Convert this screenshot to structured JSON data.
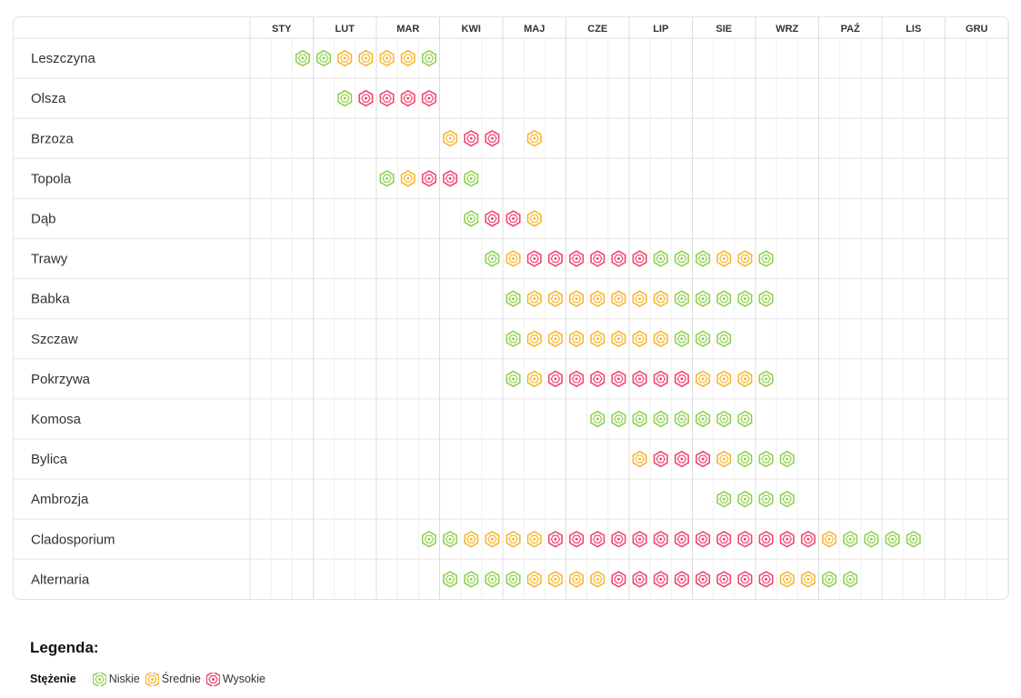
{
  "chart_data": {
    "type": "table",
    "months": [
      "STY",
      "LUT",
      "MAR",
      "KWI",
      "MAJ",
      "CZE",
      "LIP",
      "SIE",
      "WRZ",
      "PAŹ",
      "LIS",
      "GRU"
    ],
    "levels": {
      "L": {
        "name": "Niskie",
        "color": "#8fd14f"
      },
      "M": {
        "name": "Średnie",
        "color": "#f5b731"
      },
      "H": {
        "name": "Wysokie",
        "color": "#ef476f"
      }
    },
    "rows": [
      {
        "name": "Leszczyna",
        "start": 2,
        "levels": [
          "L",
          "L",
          "M",
          "M",
          "M",
          "M",
          "L"
        ]
      },
      {
        "name": "Olsza",
        "start": 4,
        "levels": [
          "L",
          "H",
          "H",
          "H",
          "H"
        ]
      },
      {
        "name": "Brzoza",
        "start": 9,
        "levels": [
          "M",
          "H",
          "H",
          null,
          "M"
        ]
      },
      {
        "name": "Topola",
        "start": 6,
        "levels": [
          "L",
          "M",
          "H",
          "H",
          "L"
        ]
      },
      {
        "name": "Dąb",
        "start": 10,
        "levels": [
          "L",
          "H",
          "H",
          "M"
        ]
      },
      {
        "name": "Trawy",
        "start": 11,
        "levels": [
          "L",
          "M",
          "H",
          "H",
          "H",
          "H",
          "H",
          "H",
          "L",
          "L",
          "L",
          "M",
          "M",
          "L"
        ]
      },
      {
        "name": "Babka",
        "start": 12,
        "levels": [
          "L",
          "M",
          "M",
          "M",
          "M",
          "M",
          "M",
          "M",
          "L",
          "L",
          "L",
          "L",
          "L"
        ]
      },
      {
        "name": "Szczaw",
        "start": 12,
        "levels": [
          "L",
          "M",
          "M",
          "M",
          "M",
          "M",
          "M",
          "M",
          "L",
          "L",
          "L"
        ]
      },
      {
        "name": "Pokrzywa",
        "start": 12,
        "levels": [
          "L",
          "M",
          "H",
          "H",
          "H",
          "H",
          "H",
          "H",
          "H",
          "M",
          "M",
          "M",
          "L"
        ]
      },
      {
        "name": "Komosa",
        "start": 16,
        "levels": [
          "L",
          "L",
          "L",
          "L",
          "L",
          "L",
          "L",
          "L"
        ]
      },
      {
        "name": "Bylica",
        "start": 18,
        "levels": [
          "M",
          "H",
          "H",
          "H",
          "M",
          "L",
          "L",
          "L"
        ]
      },
      {
        "name": "Ambrozja",
        "start": 22,
        "levels": [
          "L",
          "L",
          "L",
          "L"
        ]
      },
      {
        "name": "Cladosporium",
        "start": 8,
        "levels": [
          "L",
          "L",
          "M",
          "M",
          "M",
          "M",
          "H",
          "H",
          "H",
          "H",
          "H",
          "H",
          "H",
          "H",
          "H",
          "H",
          "H",
          "H",
          "H",
          "M",
          "L",
          "L",
          "L",
          "L"
        ]
      },
      {
        "name": "Alternaria",
        "start": 9,
        "levels": [
          "L",
          "L",
          "L",
          "L",
          "M",
          "M",
          "M",
          "M",
          "H",
          "H",
          "H",
          "H",
          "H",
          "H",
          "H",
          "H",
          "M",
          "M",
          "L",
          "L"
        ]
      }
    ]
  },
  "legend": {
    "title": "Legenda:",
    "label": "Stężenie",
    "items": [
      {
        "key": "L",
        "label": "Niskie"
      },
      {
        "key": "M",
        "label": "Średnie"
      },
      {
        "key": "H",
        "label": "Wysokie"
      }
    ]
  }
}
